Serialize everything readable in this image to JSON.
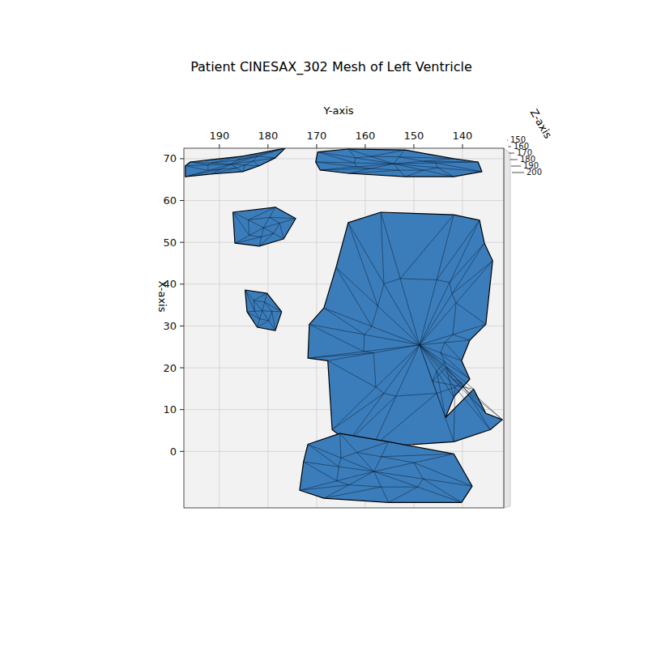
{
  "chart_data": {
    "type": "mesh3d",
    "title": "Patient CINESAX_302 Mesh of Left Ventricle",
    "x_label": "X-axis",
    "y_label": "Y-axis",
    "z_label": "Z-axis",
    "xlim": [
      -13.5,
      72.5
    ],
    "xticks": [
      0,
      10,
      20,
      30,
      40,
      50,
      60,
      70
    ],
    "ylim": [
      197.3,
      131.5
    ],
    "yticks": [
      190,
      180,
      170,
      160,
      150,
      140
    ],
    "zlim": [
      150,
      200
    ],
    "zticks": [
      150,
      160,
      170,
      180,
      190,
      200
    ],
    "grid": true,
    "color": "#3b7dbb",
    "components": [
      {
        "y": [
          197,
          196,
          185.2,
          176.5,
          178.5,
          181.8,
          185.2,
          191.8,
          197
        ],
        "x": [
          68.3,
          69.2,
          70.6,
          72.5,
          70.2,
          68.3,
          66.9,
          66.3,
          65.7
        ]
      },
      {
        "y": [
          169.8,
          163.5,
          151.8,
          141.8,
          136.8,
          136,
          141.8,
          151.8,
          163.5,
          169.3,
          170.2
        ],
        "x": [
          71.6,
          72.3,
          72.1,
          70.0,
          69.2,
          66.9,
          65.7,
          65.7,
          66.5,
          67.3,
          69.2
        ]
      },
      {
        "y": [
          187.2,
          178.5,
          174.3,
          176.8,
          181.8,
          186.8
        ],
        "x": [
          57.2,
          58.4,
          55.7,
          50.8,
          49.1,
          49.8
        ]
      },
      {
        "y": [
          184.7,
          180.2,
          177.2,
          178.5,
          182.2,
          184.3
        ],
        "x": [
          38.6,
          37.8,
          33.4,
          28.9,
          29.7,
          33.4
        ]
      },
      {
        "y": [
          163.5,
          156.8,
          141.8,
          136.5,
          135.5,
          133.8,
          135.2,
          138.5,
          140.2,
          138.5,
          141.8,
          143.5,
          137.7,
          135.2,
          131.8,
          134.3,
          141.8,
          158.5,
          163.5,
          166.8,
          167.7,
          171.8,
          171.5,
          168.5,
          166
        ],
        "x": [
          54.7,
          57.2,
          56.6,
          55.3,
          49.8,
          45.6,
          30.4,
          26.6,
          21.7,
          17.3,
          13.0,
          8.1,
          14.9,
          9.1,
          7.6,
          5.2,
          2.3,
          1.0,
          2.3,
          5.2,
          21.7,
          22.3,
          30.4,
          34.3,
          44.0
        ]
      },
      {
        "y": [
          171.8,
          165.2,
          155.2,
          141.8,
          138,
          140.2,
          155.2,
          168.5,
          173.5,
          172.7
        ],
        "x": [
          1.7,
          4.3,
          2.3,
          -0.6,
          -8.3,
          -12.2,
          -12.2,
          -11.2,
          -9.3,
          -2.5
        ]
      }
    ]
  }
}
